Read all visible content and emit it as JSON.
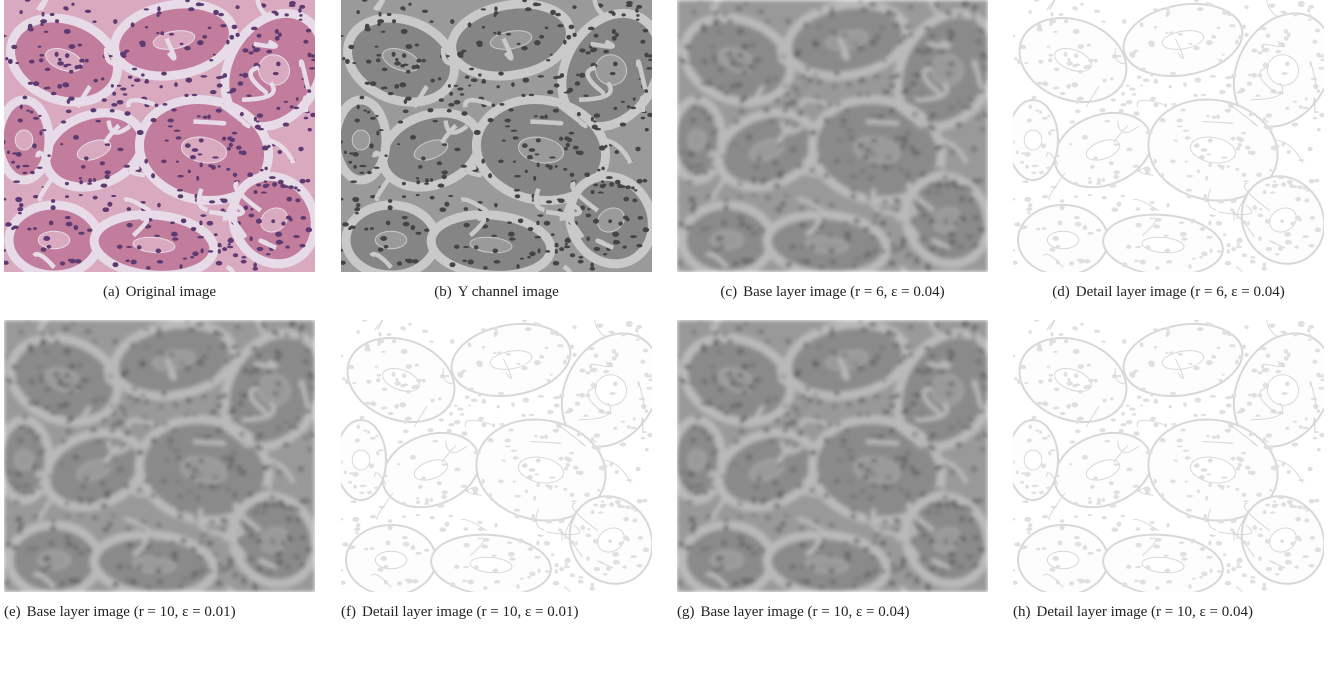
{
  "figure": {
    "panels": [
      {
        "label": "(a)",
        "caption": "Original image"
      },
      {
        "label": "(b)",
        "caption": "Y channel image"
      },
      {
        "label": "(c)",
        "caption": "Base layer image (r = 6, ε = 0.04)"
      },
      {
        "label": "(d)",
        "caption": "Detail layer image (r = 6, ε = 0.04)"
      },
      {
        "label": "(e)",
        "caption": "Base layer image (r = 10, ε = 0.01)"
      },
      {
        "label": "(f)",
        "caption": "Detail layer image (r = 10, ε = 0.01)"
      },
      {
        "label": "(g)",
        "caption": "Base layer image (r = 10, ε = 0.04)"
      },
      {
        "label": "(h)",
        "caption": "Detail layer image (r = 10, ε = 0.04)"
      }
    ]
  }
}
